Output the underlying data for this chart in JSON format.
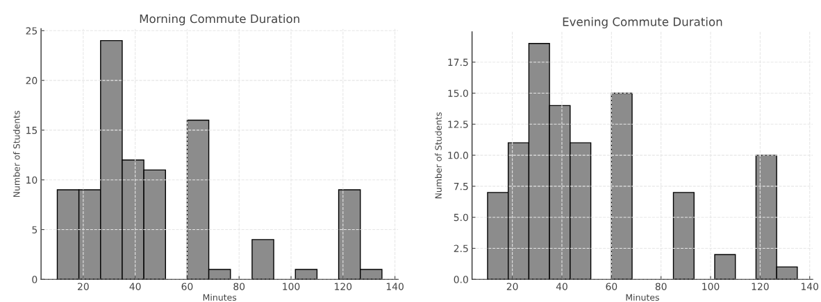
{
  "chart_data": [
    {
      "type": "histogram",
      "title": "Morning Commute Duration",
      "xlabel": "Minutes",
      "ylabel": "Number of Students",
      "bins": [
        10,
        18.33,
        26.67,
        35,
        43.33,
        51.67,
        60,
        68.33,
        76.67,
        85,
        93.33,
        101.67,
        110,
        118.33,
        126.67,
        135
      ],
      "values": [
        9,
        9,
        24,
        12,
        11,
        0,
        16,
        1,
        0,
        4,
        0,
        1,
        0,
        9,
        1
      ],
      "color": "#8c8c8c",
      "xlim": [
        3.75,
        141.25
      ],
      "xticks": [
        20,
        40,
        60,
        80,
        100,
        120,
        140
      ],
      "ylim": [
        0,
        25.2
      ],
      "yticks": [
        0,
        5,
        10,
        15,
        20,
        25
      ],
      "grid": true
    },
    {
      "type": "histogram",
      "title": "Evening Commute Duration",
      "xlabel": "Minutes",
      "ylabel": "Number of Students",
      "bins": [
        10,
        18.33,
        26.67,
        35,
        43.33,
        51.67,
        60,
        68.33,
        76.67,
        85,
        93.33,
        101.67,
        110,
        118.33,
        126.67,
        135
      ],
      "values": [
        7,
        11,
        19,
        14,
        11,
        0,
        15,
        0,
        0,
        7,
        0,
        2,
        0,
        10,
        1
      ],
      "color": "#8c8c8c",
      "xlim": [
        3.75,
        141.25
      ],
      "xticks": [
        20,
        40,
        60,
        80,
        100,
        120,
        140
      ],
      "ylim": [
        0,
        19.95
      ],
      "yticks": [
        {
          "value": 0,
          "label": "0.0"
        },
        {
          "value": 2.5,
          "label": "2.5"
        },
        {
          "value": 5,
          "label": "5.0"
        },
        {
          "value": 7.5,
          "label": "7.5"
        },
        {
          "value": 10,
          "label": "10.0"
        },
        {
          "value": 12.5,
          "label": "12.5"
        },
        {
          "value": 15,
          "label": "15.0"
        },
        {
          "value": 17.5,
          "label": "17.5"
        }
      ],
      "grid": true
    }
  ]
}
